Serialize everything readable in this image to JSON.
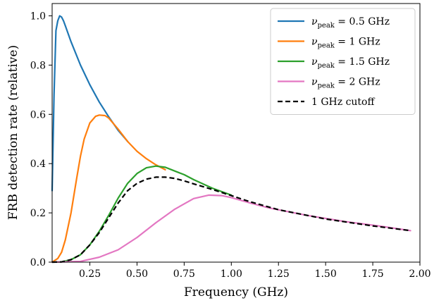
{
  "chart_data": {
    "type": "line",
    "xlabel": "Frequency (GHz)",
    "ylabel": "FRB detection rate (relative)",
    "xlim": [
      0.05,
      2.0
    ],
    "ylim": [
      0.0,
      1.05
    ],
    "xticks": [
      "0.25",
      "0.50",
      "0.75",
      "1.00",
      "1.25",
      "1.50",
      "1.75",
      "2.00"
    ],
    "yticks": [
      "0.0",
      "0.2",
      "0.4",
      "0.6",
      "0.8",
      "1.0"
    ],
    "grid": false,
    "legend_position": "top-right",
    "series": [
      {
        "name": "ν_peak = 0.5 GHz",
        "legend_main": "ν",
        "legend_sub": "peak",
        "legend_rest": " = 0.5 GHz",
        "color": "#1f77b4",
        "dash": "solid",
        "x": [
          0.05,
          0.06,
          0.07,
          0.08,
          0.09,
          0.1,
          0.11,
          0.12,
          0.15,
          0.2,
          0.25,
          0.3,
          0.35,
          0.4,
          0.45
        ],
        "y": [
          0.29,
          0.68,
          0.94,
          0.98,
          1.0,
          0.995,
          0.98,
          0.96,
          0.895,
          0.8,
          0.72,
          0.65,
          0.59,
          0.535,
          0.49
        ]
      },
      {
        "name": "ν_peak = 1 GHz",
        "legend_main": "ν",
        "legend_sub": "peak",
        "legend_rest": " = 1 GHz",
        "color": "#ff7f0e",
        "dash": "solid",
        "x": [
          0.05,
          0.08,
          0.1,
          0.12,
          0.15,
          0.18,
          0.2,
          0.22,
          0.25,
          0.28,
          0.3,
          0.33,
          0.35,
          0.4,
          0.45,
          0.5,
          0.55,
          0.6,
          0.65
        ],
        "y": [
          0.0,
          0.015,
          0.04,
          0.09,
          0.2,
          0.34,
          0.43,
          0.5,
          0.565,
          0.592,
          0.597,
          0.595,
          0.585,
          0.54,
          0.49,
          0.45,
          0.42,
          0.395,
          0.375
        ]
      },
      {
        "name": "ν_peak = 1.5 GHz",
        "legend_main": "ν",
        "legend_sub": "peak",
        "legend_rest": " = 1.5 GHz",
        "color": "#2ca02c",
        "dash": "solid",
        "x": [
          0.05,
          0.1,
          0.15,
          0.2,
          0.25,
          0.3,
          0.35,
          0.4,
          0.45,
          0.5,
          0.55,
          0.6,
          0.65,
          0.7,
          0.75,
          0.8,
          0.9,
          1.0
        ],
        "y": [
          0.0,
          0.001,
          0.01,
          0.03,
          0.07,
          0.125,
          0.19,
          0.26,
          0.32,
          0.36,
          0.383,
          0.39,
          0.385,
          0.37,
          0.355,
          0.335,
          0.3,
          0.272
        ]
      },
      {
        "name": "ν_peak = 2 GHz",
        "legend_main": "ν",
        "legend_sub": "peak",
        "legend_rest": " = 2 GHz",
        "color": "#e377c2",
        "dash": "solid",
        "x": [
          0.05,
          0.2,
          0.3,
          0.4,
          0.5,
          0.6,
          0.7,
          0.8,
          0.88,
          0.95,
          1.0,
          1.1,
          1.2,
          1.4,
          1.6,
          1.8,
          1.95
        ],
        "y": [
          0.0,
          0.003,
          0.02,
          0.05,
          0.1,
          0.16,
          0.215,
          0.258,
          0.272,
          0.27,
          0.262,
          0.24,
          0.22,
          0.19,
          0.165,
          0.145,
          0.128
        ]
      },
      {
        "name": "1 GHz cutoff",
        "legend_main": "",
        "legend_sub": "",
        "legend_rest": "1 GHz cutoff",
        "color": "#000000",
        "dash": "dashed",
        "x": [
          0.05,
          0.1,
          0.15,
          0.2,
          0.25,
          0.3,
          0.35,
          0.4,
          0.45,
          0.5,
          0.55,
          0.6,
          0.65,
          0.7,
          0.75,
          0.8,
          0.9,
          1.0,
          1.1,
          1.25,
          1.5,
          1.75,
          1.95
        ],
        "y": [
          0.0,
          0.001,
          0.01,
          0.03,
          0.07,
          0.12,
          0.18,
          0.24,
          0.29,
          0.32,
          0.337,
          0.345,
          0.345,
          0.34,
          0.33,
          0.318,
          0.295,
          0.27,
          0.245,
          0.213,
          0.175,
          0.147,
          0.128
        ]
      }
    ]
  }
}
